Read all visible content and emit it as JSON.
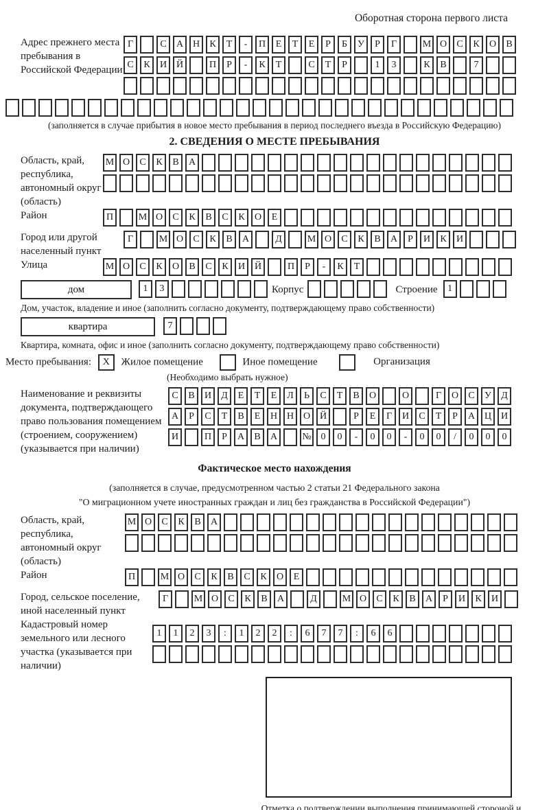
{
  "header": {
    "title": "Оборотная сторона первого листа"
  },
  "prev_address": {
    "label": "Адрес прежнего места пребывания в Российской Федерации",
    "rows": [
      {
        "cells": "Г САНКТ-ПЕТЕРБУРГ МОСКОВ",
        "len": 24
      },
      {
        "cells": "СКИЙ ПР-КТ СТР 13 КВ 7",
        "len": 24
      },
      {
        "cells": "",
        "len": 24
      }
    ],
    "overflow_row": {
      "cells": "",
      "len": 31
    },
    "note": "(заполняется в случае прибытия в новое место пребывания в период последнего въезда в Российскую Федерацию)"
  },
  "section2": {
    "title": "2. СВЕДЕНИЯ О МЕСТЕ ПРЕБЫВАНИЯ",
    "region": {
      "label": "Область, край, республика, автономный округ (область)",
      "rows": [
        {
          "cells": "МОСКВА",
          "len": 25
        },
        {
          "cells": "",
          "len": 25
        }
      ]
    },
    "district": {
      "label": "Район",
      "row": {
        "cells": "П МОСКВСКОЕ",
        "len": 25
      }
    },
    "city": {
      "label": "Город или другой населенный пункт",
      "row": {
        "cells": "Г МОСКВА Д МОСКВАРИКИ",
        "len": 24
      }
    },
    "street": {
      "label": "Улица",
      "row": {
        "cells": "МОСКОВСКИЙ ПР-КТ",
        "len": 25
      }
    },
    "house": {
      "box_label": "дом",
      "row": {
        "cells": "13",
        "len": 8
      },
      "korpus_label": "Корпус",
      "korpus_row": {
        "cells": "",
        "len": 5
      },
      "stroenie_label": "Строение",
      "stroenie_row": {
        "cells": "1",
        "len": 4
      },
      "note": "Дом, участок, владение и иное (заполнить согласно документу, подтверждающему право собственности)"
    },
    "apartment": {
      "box_label": "квартира",
      "row": {
        "cells": "7",
        "len": 4
      },
      "note": "Квартира, комната, офис и иное (заполнить согласно документу, подтверждающему право собственности)"
    },
    "stay_type": {
      "label": "Место пребывания:",
      "options": [
        {
          "mark": "X",
          "label": "Жилое помещение"
        },
        {
          "mark": "",
          "label": "Иное помещение"
        },
        {
          "mark": "",
          "label": "Организация"
        }
      ],
      "note": "(Необходимо выбрать нужное)"
    },
    "document": {
      "label": "Наименование и реквизиты документа, подтверждающего право пользования помещением (строением, сооружением) (указывается при наличии)",
      "rows": [
        {
          "cells": "СВИДЕТЕЛЬСТВО О ГОСУД",
          "len": 21
        },
        {
          "cells": "АРСТВЕННОЙ РЕГИСТРАЦИ",
          "len": 21
        },
        {
          "cells": "И ПРАВА №00-00-00/000",
          "len": 21
        }
      ]
    }
  },
  "actual_location": {
    "heading": "Фактическое место нахождения",
    "note_line1": "(заполняется в случае, предусмотренном частью 2 статьи 21 Федерального закона",
    "note_line2": "\"О миграционном учете иностранных граждан и лиц без гражданства в Российской Федерации\")",
    "region": {
      "label": "Область, край, республика, автономный округ (область)",
      "rows": [
        {
          "cells": "МОСКВА",
          "len": 24
        },
        {
          "cells": "",
          "len": 24
        }
      ]
    },
    "district": {
      "label": "Район",
      "row": {
        "cells": "П МОСКВСКОЕ",
        "len": 24
      }
    },
    "city": {
      "label": "Город, сельское поселение, иной населенный пункт",
      "row": {
        "cells": "Г МОСКВА Д МОСКВАРИКИ",
        "len": 22
      }
    },
    "cadastral": {
      "label": "Кадастровый номер земельного или лесного участка (указывается при наличии)",
      "rows": [
        {
          "cells": "1123:122:677:66",
          "len": 22
        },
        {
          "cells": "",
          "len": 22
        }
      ]
    }
  },
  "stamp": {
    "caption": "Отметка о подтверждении выполнения принимающей стороной и иностранным гражданином или лицом без гражданства действий, необходимых для его постановки на учет по месту пребывания"
  }
}
